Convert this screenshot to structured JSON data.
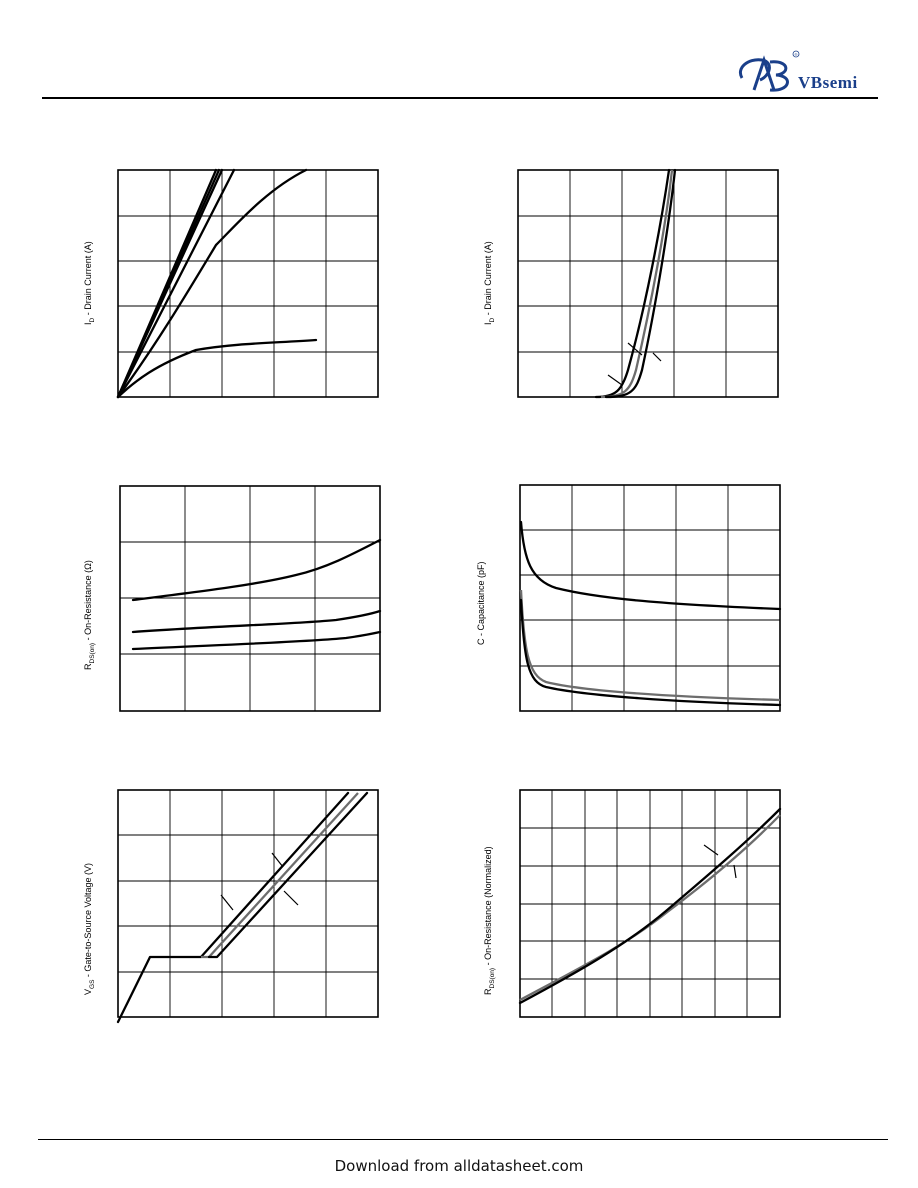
{
  "brand": {
    "name": "VBsemi",
    "registered_mark": "®",
    "logo_icon": "vb-logo-icon"
  },
  "footer": {
    "text": "Download from alldatasheet.com"
  },
  "charts": {
    "output_characteristics": {
      "y_label": "I",
      "y_label_sub": "D",
      "y_label_rest": " - Drain Current (A)"
    },
    "transfer_characteristics": {
      "y_label": "I",
      "y_label_sub": "D",
      "y_label_rest": " - Drain Current (A)"
    },
    "on_resistance": {
      "y_label": "R",
      "y_label_sub": "DS(on)",
      "y_label_rest": " - On-Resistance (Ω)"
    },
    "capacitance": {
      "y_label": "C - Capacitance (pF)"
    },
    "gate_charge": {
      "y_label": "V",
      "y_label_sub": "GS",
      "y_label_rest": " - Gate-to-Source Voltage (V)"
    },
    "normalized_on_resistance": {
      "y_label": "R",
      "y_label_sub": "DS(on)",
      "y_label_rest": " - On-Resistance (Normalized)"
    }
  }
}
